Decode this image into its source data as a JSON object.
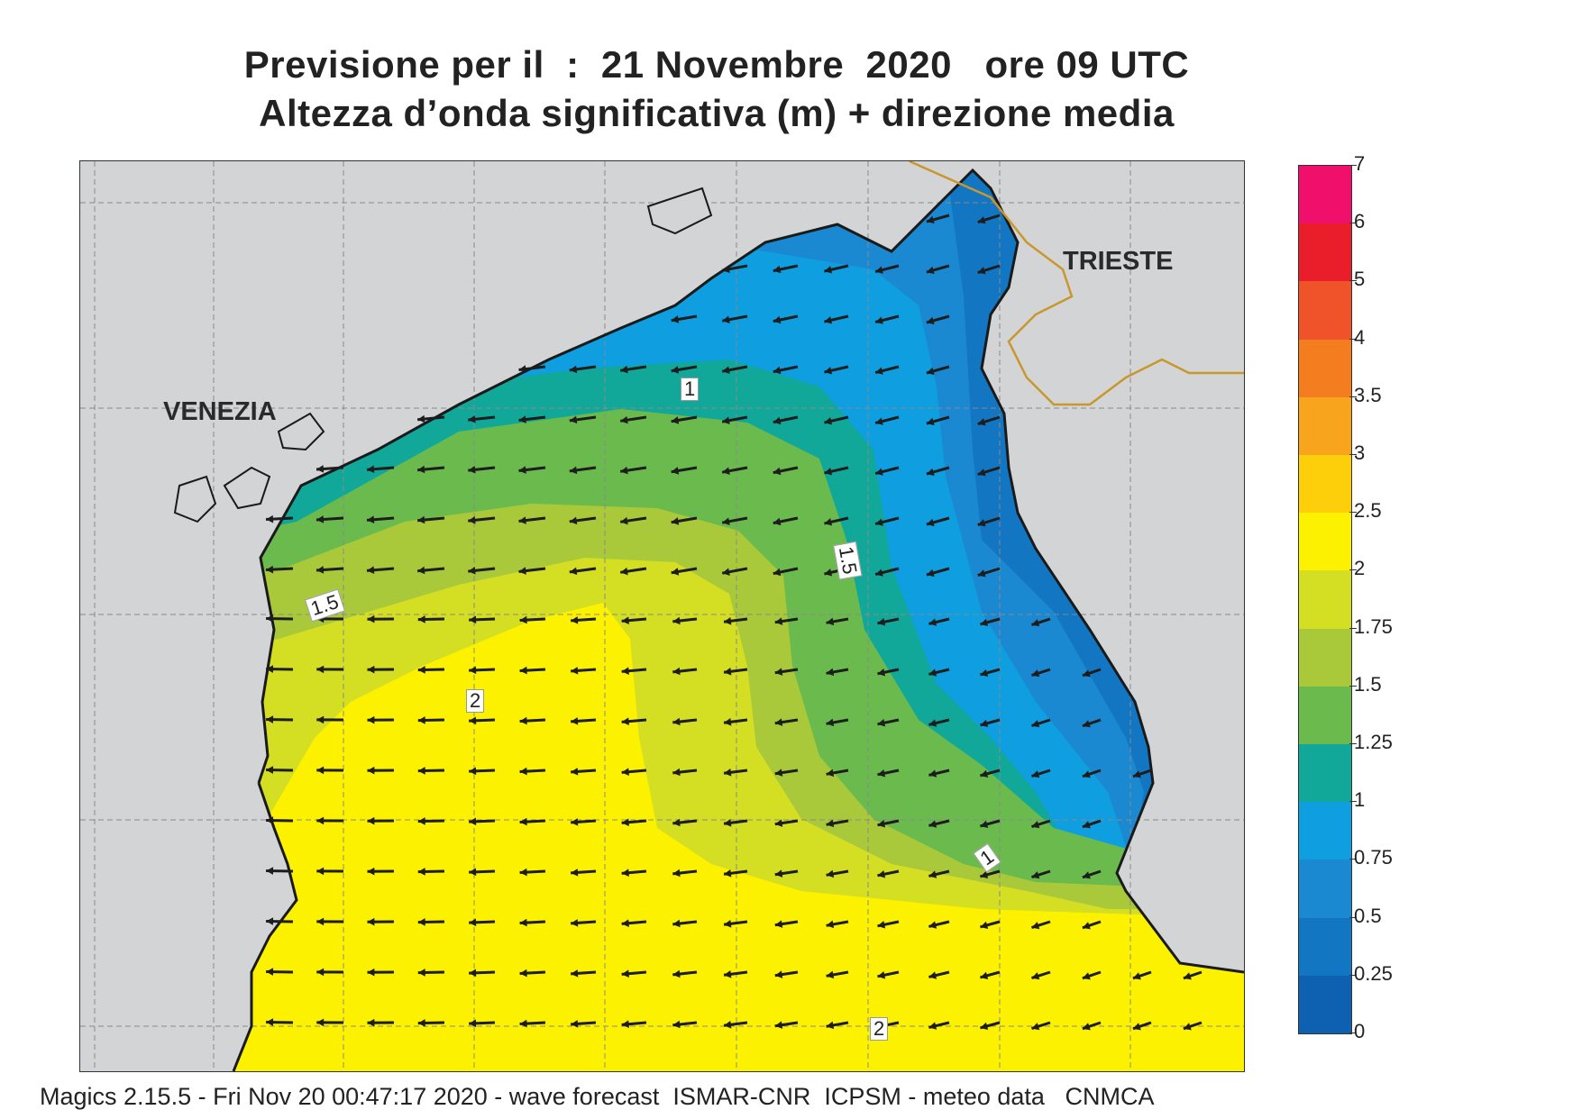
{
  "title_line1": "Previsione per il  :  21 Novembre  2020   ore 09 UTC",
  "title_line2": "Altezza d’onda significativa (m) + direzione media",
  "cities": {
    "venezia": "VENEZIA",
    "trieste": "TRIESTE"
  },
  "contour_labels": [
    "1",
    "1.5",
    "1.5",
    "2",
    "1",
    "2"
  ],
  "legend": {
    "labels": [
      "7",
      "6",
      "5",
      "4",
      "3.5",
      "3",
      "2.5",
      "2",
      "1.75",
      "1.5",
      "1.25",
      "1",
      "0.75",
      "0.5",
      "0.25",
      "0"
    ],
    "colors": [
      "#f0106b",
      "#ea1d2a",
      "#f0532a",
      "#f47d20",
      "#f8a41c",
      "#fdcf0a",
      "#fcf200",
      "#d4de22",
      "#a9c93a",
      "#6bba4d",
      "#11a89a",
      "#0f9ee0",
      "#1b88d2",
      "#1276c2",
      "#0d61b0"
    ]
  },
  "colors": {
    "land": "#d3d4d5",
    "coast": "#1a1a1a",
    "border": "#c8972e",
    "grid": "#8a8a8a",
    "arrow": "#1d1d1d"
  },
  "footer": "Magics 2.15.5 - Fri Nov 20 00:47:17 2020 - wave forecast  ISMAR-CNR  ICPSM - meteo data   CNMCA"
}
